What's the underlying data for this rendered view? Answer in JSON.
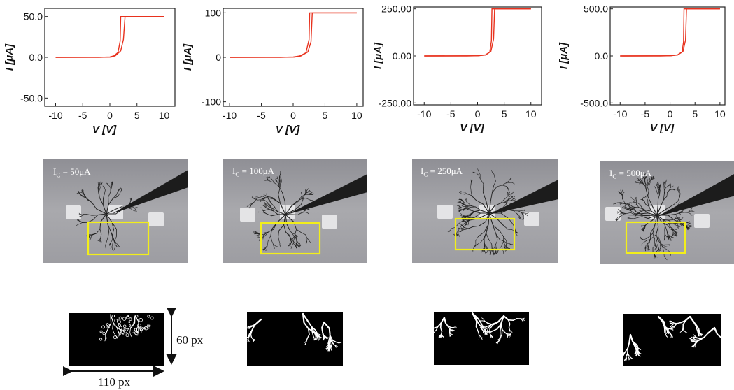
{
  "chart_data": [
    {
      "type": "line",
      "xlabel": "V [V]",
      "ylabel": "I [μA]",
      "xlim": [
        -12,
        12
      ],
      "ylim": [
        -60,
        60
      ],
      "x_ticks": [
        "-10",
        "-5",
        "0",
        "5",
        "10"
      ],
      "y_ticks": [
        "50.0",
        "0.0",
        "-50.0"
      ],
      "y_tick_values": [
        50,
        0,
        -50
      ],
      "compliance": 50,
      "series": [
        {
          "x": [
            -10,
            -2,
            0,
            0.8,
            1.5,
            1.9,
            2.0,
            10
          ],
          "y": [
            0,
            0,
            0.5,
            2,
            6,
            20,
            50,
            50
          ]
        },
        {
          "x": [
            10,
            2.8,
            2.5,
            2.0,
            1.0,
            0.2,
            -10
          ],
          "y": [
            50,
            50,
            22,
            8,
            2,
            0.3,
            0
          ]
        }
      ],
      "color": "#e8321e"
    },
    {
      "type": "line",
      "xlabel": "V [V]",
      "ylabel": "I [μA]",
      "xlim": [
        -11,
        11
      ],
      "ylim": [
        -110,
        110
      ],
      "x_ticks": [
        "-10",
        "-5",
        "0",
        "5",
        "10"
      ],
      "y_ticks": [
        "100",
        "0",
        "-100"
      ],
      "y_tick_values": [
        100,
        0,
        -100
      ],
      "compliance": 100,
      "series": [
        {
          "x": [
            -10,
            -2,
            0,
            1.0,
            2.0,
            2.5,
            2.6,
            10
          ],
          "y": [
            0,
            0,
            1,
            3,
            10,
            40,
            100,
            100
          ]
        },
        {
          "x": [
            10,
            3.0,
            2.8,
            2.3,
            1.2,
            0.2,
            -10
          ],
          "y": [
            100,
            100,
            35,
            12,
            3,
            0.5,
            0
          ]
        }
      ],
      "color": "#e8321e"
    },
    {
      "type": "line",
      "xlabel": "V [V]",
      "ylabel": "I [μA]",
      "xlim": [
        -12,
        12
      ],
      "ylim": [
        -260,
        260
      ],
      "x_ticks": [
        "-10",
        "-5",
        "0",
        "5",
        "10"
      ],
      "y_ticks": [
        "250.00",
        "0.00",
        "-250.00"
      ],
      "y_tick_values": [
        250,
        0,
        -250
      ],
      "compliance": 250,
      "series": [
        {
          "x": [
            -10,
            -2,
            0,
            1.5,
            2.3,
            2.6,
            2.7,
            10
          ],
          "y": [
            0,
            0,
            1,
            5,
            20,
            80,
            250,
            250
          ]
        },
        {
          "x": [
            10,
            3.2,
            3.0,
            2.5,
            1.5,
            0.2,
            -10
          ],
          "y": [
            250,
            250,
            90,
            25,
            6,
            1,
            0
          ]
        }
      ],
      "color": "#e8321e"
    },
    {
      "type": "line",
      "xlabel": "V [V]",
      "ylabel": "I [μA]",
      "xlim": [
        -12,
        11
      ],
      "ylim": [
        -520,
        520
      ],
      "x_ticks": [
        "-10",
        "-5",
        "0",
        "5",
        "10"
      ],
      "y_ticks": [
        "500.0",
        "0.0",
        "-500.0"
      ],
      "y_tick_values": [
        500,
        0,
        -500
      ],
      "compliance": 500,
      "series": [
        {
          "x": [
            -10,
            -2,
            0,
            1.5,
            2.4,
            2.7,
            2.8,
            10
          ],
          "y": [
            0,
            0,
            2,
            10,
            40,
            150,
            500,
            500
          ]
        },
        {
          "x": [
            10,
            3.3,
            3.1,
            2.6,
            1.5,
            0.2,
            -10
          ],
          "y": [
            500,
            500,
            170,
            50,
            12,
            2,
            0
          ]
        }
      ],
      "color": "#e8321e"
    }
  ],
  "micrographs": [
    {
      "label": "I",
      "sub": "C",
      "value": " = 50μA"
    },
    {
      "label": "I",
      "sub": "C",
      "value": " = 100μA"
    },
    {
      "label": "I",
      "sub": "C",
      "value": " = 250μA"
    },
    {
      "label": "I",
      "sub": "C",
      "value": " = 500μA"
    }
  ],
  "dimensions": {
    "height": "60 px",
    "width": "110 px"
  },
  "colors": {
    "curve": "#e8321e",
    "roi_box": "#f2ee1a",
    "photo_bg": "#a9a9ad"
  }
}
